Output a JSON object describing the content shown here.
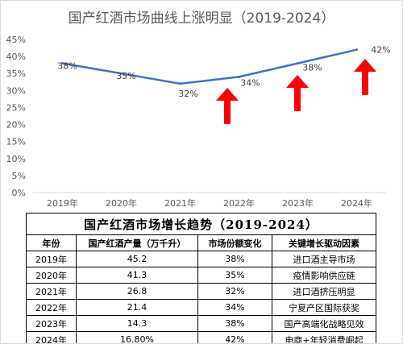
{
  "chart_data": {
    "type": "line",
    "title": "国产红酒市场曲线上涨明显（2019-2024）",
    "categories": [
      "2019年",
      "2020年",
      "2021年",
      "2022年",
      "2023年",
      "2024年"
    ],
    "x_values": [
      2019,
      2020,
      2021,
      2022,
      2023,
      2024
    ],
    "series": [
      {
        "values": [
          38,
          35,
          32,
          34,
          38,
          42
        ]
      }
    ],
    "data_labels": [
      "38%",
      "35%",
      "32%",
      "34%",
      "38%",
      "42%"
    ],
    "y_tick_labels": [
      "0%",
      "5%",
      "10%",
      "15%",
      "20%",
      "25%",
      "30%",
      "35%",
      "40%",
      "45%"
    ],
    "ylim": [
      0,
      45
    ],
    "y_unit": "%",
    "grid": false,
    "annotations": [
      {
        "type": "up-arrow",
        "x": 2022
      },
      {
        "type": "up-arrow",
        "x": 2023
      },
      {
        "type": "up-arrow",
        "x": 2024
      }
    ],
    "colors": {
      "line": "#4472c4",
      "arrow": "#ff0000",
      "axis": "#d9d9d9"
    }
  },
  "table": {
    "title": "国产红酒市场增长趋势（2019-2024）",
    "headers": [
      "年份",
      "国产红酒产量（万千升）",
      "市场份额变化",
      "关键增长驱动因素"
    ],
    "rows": [
      [
        "2019年",
        "45.2",
        "38%",
        "进口酒主导市场"
      ],
      [
        "2020年",
        "41.3",
        "35%",
        "疫情影响供应链"
      ],
      [
        "2021年",
        "26.8",
        "32%",
        "进口酒挤压明显"
      ],
      [
        "2022年",
        "21.4",
        "34%",
        "宁夏产区国际获奖"
      ],
      [
        "2023年",
        "14.3",
        "38%",
        "国产高端化战略见效"
      ],
      [
        "2024年",
        "16.80%",
        "42%",
        "电商+年轻消费崛起"
      ]
    ]
  }
}
